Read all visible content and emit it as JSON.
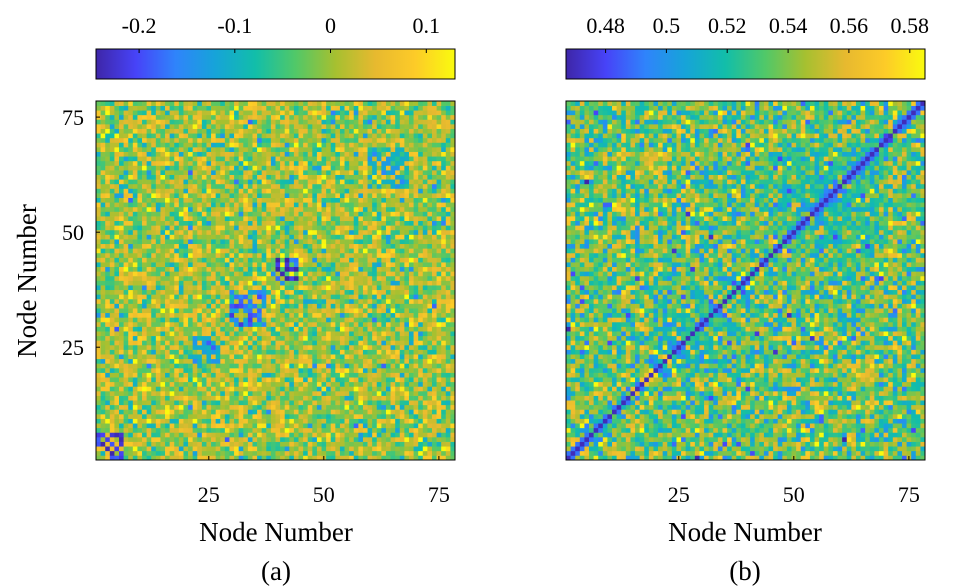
{
  "chart_data": [
    {
      "type": "heatmap",
      "id": "a",
      "caption": "(a)",
      "xlabel": "Node Number",
      "ylabel": "Node Number",
      "n": 78,
      "x_ticks": [
        "25",
        "50",
        "75"
      ],
      "y_ticks": [
        "75",
        "50",
        "25"
      ],
      "colorbar": {
        "ticks": [
          "-0.2",
          "-0.1",
          "0",
          "0.1"
        ],
        "min": -0.245,
        "max": 0.13,
        "tick_values": [
          -0.2,
          -0.1,
          0,
          0.1
        ]
      },
      "pattern": {
        "background_mean": 0.0,
        "background_spread": 0.12,
        "diagonal": "none",
        "blocks": [
          {
            "from": 1,
            "to": 6,
            "value": -0.2
          },
          {
            "from": 22,
            "to": 28,
            "value": -0.12
          },
          {
            "from": 30,
            "to": 37,
            "value": -0.16
          },
          {
            "from": 40,
            "to": 44,
            "value": -0.22
          },
          {
            "from": 60,
            "to": 68,
            "value": -0.1
          }
        ]
      }
    },
    {
      "type": "heatmap",
      "id": "b",
      "caption": "(b)",
      "xlabel": "Node Number",
      "ylabel": "",
      "n": 78,
      "x_ticks": [
        "25",
        "50",
        "75"
      ],
      "y_ticks": [],
      "colorbar": {
        "ticks": [
          "0.48",
          "0.5",
          "0.52",
          "0.54",
          "0.56",
          "0.58"
        ],
        "min": 0.467,
        "max": 0.585,
        "tick_values": [
          0.48,
          0.5,
          0.52,
          0.54,
          0.56,
          0.58
        ]
      },
      "pattern": {
        "background_mean": 0.535,
        "background_spread": 0.045,
        "diagonal": "low",
        "diagonal_value": 0.47,
        "blocks": [
          {
            "from": 20,
            "to": 34,
            "value": 0.515
          },
          {
            "from": 48,
            "to": 70,
            "value": 0.518
          }
        ]
      }
    }
  ],
  "colormap": [
    "#3e26a8",
    "#4743f8",
    "#2f84fb",
    "#16a4d8",
    "#12bea9",
    "#51c868",
    "#a6c030",
    "#e7b92f",
    "#fdcb28",
    "#f9fb0e"
  ]
}
